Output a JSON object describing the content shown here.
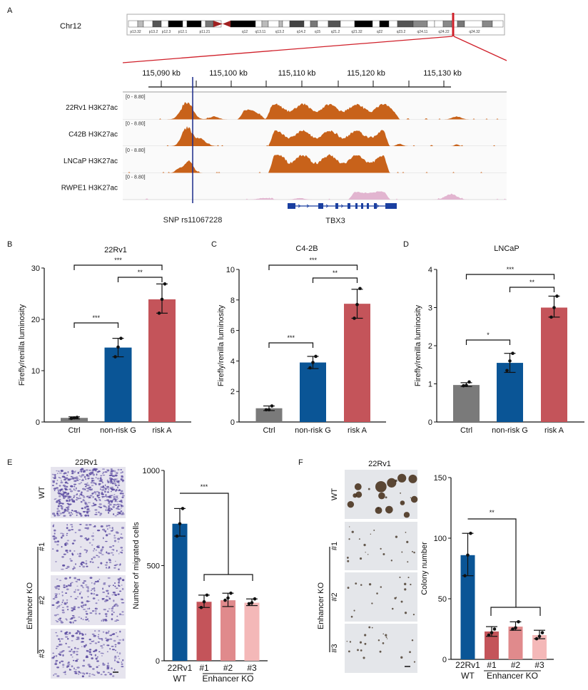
{
  "panel_labels": {
    "a": "A",
    "b": "B",
    "c": "C",
    "d": "D",
    "e": "E",
    "f": "F"
  },
  "panel_a": {
    "chromosome": "Chr12",
    "bands": [
      "p13.32",
      "p13.2",
      "p12.3",
      "p12.1",
      "p11.21",
      "q12",
      "q13.11",
      "q13.2",
      "q14.2",
      "q15",
      "q21.2",
      "q21.32",
      "q22",
      "q23.2",
      "q24.11",
      "q24.22",
      "q24.32"
    ],
    "ruler_labels": [
      "115,090 kb",
      "115,100 kb",
      "115,110 kb",
      "115,120 kb",
      "115,130 kb"
    ],
    "tracks": [
      {
        "name": "22Rv1 H3K27ac",
        "range": "[0 - 8.80]",
        "color": "#c8621a"
      },
      {
        "name": "C42B H3K27ac",
        "range": "[0 - 8.80]",
        "color": "#c8621a"
      },
      {
        "name": "LNCaP H3K27ac",
        "range": "[0 - 8.80]",
        "color": "#c8621a"
      },
      {
        "name": "RWPE1 H3K27ac",
        "range": "[0 - 8.80]",
        "color": "#e2b5d0"
      }
    ],
    "snp_label": "SNP rs11067228",
    "gene_label": "TBX3",
    "highlight_color": "#d0202a",
    "snp_line_color": "#1a2a8a",
    "gene_color": "#1a3fa0"
  },
  "microscopy": {
    "e": {
      "title": "22Rv1",
      "rows": [
        "WT",
        "#1",
        "#2",
        "#3"
      ],
      "group_label": "Enhancer KO",
      "stain_color": "#5a4aa0"
    },
    "f": {
      "title": "22Rv1",
      "rows": [
        "WT",
        "#1",
        "#2",
        "#3"
      ],
      "group_label": "Enhancer KO",
      "stain_color": "#3a2a1a"
    }
  },
  "chart_data": [
    {
      "id": "b",
      "type": "bar",
      "title": "22Rv1",
      "xlabel": "",
      "ylabel": "Firefly/renilla luminosity",
      "categories": [
        "Ctrl",
        "non-risk G",
        "risk A"
      ],
      "values": [
        0.8,
        14.5,
        23.9
      ],
      "error_low": [
        0.6,
        12.7,
        21.2
      ],
      "error_high": [
        1.0,
        16.3,
        26.9
      ],
      "points": [
        [
          0.7,
          0.8,
          0.9
        ],
        [
          12.7,
          14.6,
          16.3
        ],
        [
          21.2,
          23.9,
          26.9
        ]
      ],
      "colors": [
        "#7a7a7a",
        "#0a5596",
        "#c4545a"
      ],
      "ylim": [
        0,
        30
      ],
      "yticks": [
        0,
        10,
        20,
        30
      ],
      "significance": [
        {
          "pair": [
            0,
            1
          ],
          "label": "***"
        },
        {
          "pair": [
            0,
            2
          ],
          "label": "***"
        },
        {
          "pair": [
            1,
            2
          ],
          "label": "**"
        }
      ]
    },
    {
      "id": "c",
      "type": "bar",
      "title": "C4-2B",
      "xlabel": "",
      "ylabel": "Firefly/renilla luminosity",
      "categories": [
        "Ctrl",
        "non-risk G",
        "risk A"
      ],
      "values": [
        0.9,
        3.9,
        7.75
      ],
      "error_low": [
        0.75,
        3.5,
        6.8
      ],
      "error_high": [
        1.05,
        4.3,
        8.7
      ],
      "points": [
        [
          0.8,
          0.8,
          1.05
        ],
        [
          3.55,
          3.9,
          4.3
        ],
        [
          6.8,
          7.7,
          8.75
        ]
      ],
      "colors": [
        "#7a7a7a",
        "#0a5596",
        "#c4545a"
      ],
      "ylim": [
        0,
        10
      ],
      "yticks": [
        0,
        2,
        4,
        6,
        8,
        10
      ],
      "significance": [
        {
          "pair": [
            0,
            1
          ],
          "label": "***"
        },
        {
          "pair": [
            0,
            2
          ],
          "label": "***"
        },
        {
          "pair": [
            1,
            2
          ],
          "label": "**"
        }
      ]
    },
    {
      "id": "d",
      "type": "bar",
      "title": "LNCaP",
      "xlabel": "",
      "ylabel": "Firefly/renilla luminosity",
      "categories": [
        "Ctrl",
        "non-risk G",
        "risk A"
      ],
      "values": [
        0.97,
        1.55,
        3.0
      ],
      "error_low": [
        0.93,
        1.3,
        2.75
      ],
      "error_high": [
        1.03,
        1.8,
        3.3
      ],
      "points": [
        [
          0.95,
          0.96,
          1.05
        ],
        [
          1.35,
          1.6,
          1.8
        ],
        [
          2.75,
          3.0,
          3.3
        ]
      ],
      "colors": [
        "#7a7a7a",
        "#0a5596",
        "#c4545a"
      ],
      "ylim": [
        0,
        4
      ],
      "yticks": [
        0,
        1,
        2,
        3,
        4
      ],
      "significance": [
        {
          "pair": [
            0,
            1
          ],
          "label": "*"
        },
        {
          "pair": [
            0,
            2
          ],
          "label": "***"
        },
        {
          "pair": [
            1,
            2
          ],
          "label": "**"
        }
      ]
    },
    {
      "id": "e",
      "type": "bar",
      "title": "",
      "xlabel": "",
      "ylabel": "Number of migrated cells",
      "categories": [
        [
          "22Rv1",
          "WT"
        ],
        [
          "#1"
        ],
        [
          "#2"
        ],
        [
          "#3"
        ]
      ],
      "group_label": "Enhancer KO",
      "values": [
        720,
        310,
        318,
        305
      ],
      "error_low": [
        655,
        280,
        285,
        290
      ],
      "error_high": [
        800,
        345,
        355,
        325
      ],
      "points": [
        [
          655,
          720,
          800
        ],
        [
          280,
          310,
          345
        ],
        [
          318,
          330,
          355
        ],
        [
          300,
          305,
          325
        ]
      ],
      "colors": [
        "#0a5596",
        "#c4545a",
        "#e08a8c",
        "#f4b8b8"
      ],
      "ylim": [
        0,
        1000
      ],
      "yticks": [
        0,
        500,
        1000
      ],
      "significance": [
        {
          "from": 0,
          "to_group": [
            1,
            3
          ],
          "label": "***"
        }
      ]
    },
    {
      "id": "f",
      "type": "bar",
      "title": "",
      "xlabel": "",
      "ylabel": "Colony number",
      "categories": [
        [
          "22Rv1",
          "WT"
        ],
        [
          "#1"
        ],
        [
          "#2"
        ],
        [
          "#3"
        ]
      ],
      "group_label": "Enhancer KO",
      "values": [
        86,
        23,
        27,
        20
      ],
      "error_low": [
        69,
        19,
        24,
        17
      ],
      "error_high": [
        104,
        27,
        31,
        24
      ],
      "points": [
        [
          69,
          86,
          104
        ],
        [
          20,
          22,
          25
        ],
        [
          25,
          26,
          31
        ],
        [
          17,
          19,
          22
        ]
      ],
      "colors": [
        "#0a5596",
        "#c4545a",
        "#e08a8c",
        "#f4b8b8"
      ],
      "ylim": [
        0,
        150
      ],
      "yticks": [
        0,
        50,
        100,
        150
      ],
      "significance": [
        {
          "from": 0,
          "to_group": [
            1,
            3
          ],
          "label": "**"
        }
      ]
    }
  ]
}
